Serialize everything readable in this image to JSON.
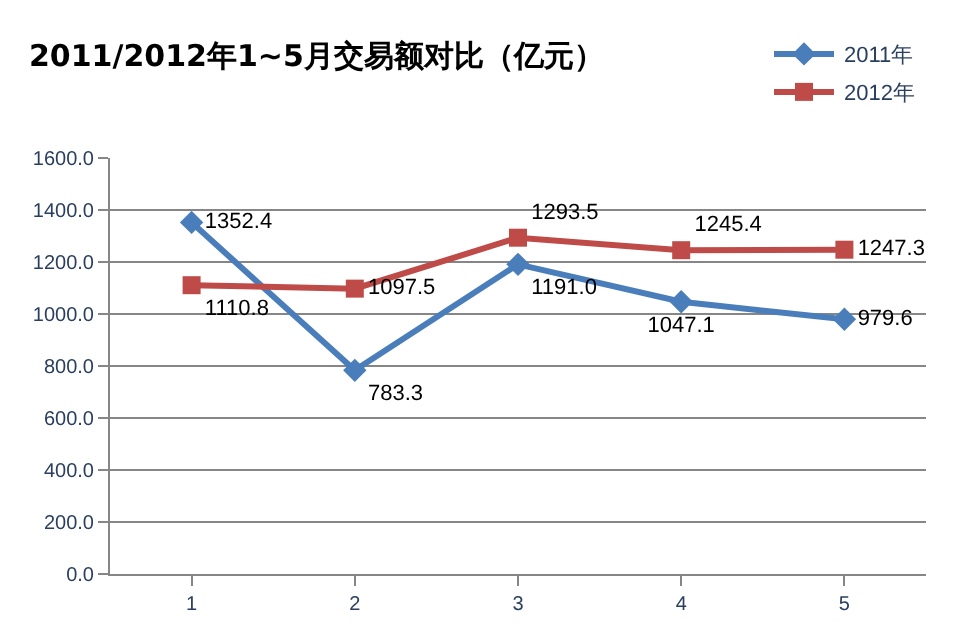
{
  "chart_data": {
    "type": "line",
    "title": "2011/2012年1~5月交易额对比（亿元）",
    "categories": [
      "1",
      "2",
      "3",
      "4",
      "5"
    ],
    "series": [
      {
        "name": "2011年",
        "color": "#4a7ebb",
        "marker": "diamond",
        "values": [
          1352.4,
          783.3,
          1191.0,
          1047.1,
          979.6
        ],
        "value_labels": [
          "1352.4",
          "783.3",
          "1191.0",
          "1047.1",
          "979.6"
        ]
      },
      {
        "name": "2012年",
        "color": "#be4b48",
        "marker": "square",
        "values": [
          1110.8,
          1097.5,
          1293.5,
          1245.4,
          1247.3
        ],
        "value_labels": [
          "1110.8",
          "1097.5",
          "1293.5",
          "1245.4",
          "1247.3"
        ]
      }
    ],
    "ylim": [
      0,
      1600
    ],
    "yticks": [
      {
        "value": 0,
        "label": "0.0"
      },
      {
        "value": 200,
        "label": "200.0"
      },
      {
        "value": 400,
        "label": "400.0"
      },
      {
        "value": 600,
        "label": "600.0"
      },
      {
        "value": 800,
        "label": "800.0"
      },
      {
        "value": 1000,
        "label": "1000.0"
      },
      {
        "value": 1200,
        "label": "1200.0"
      },
      {
        "value": 1400,
        "label": "1400.0"
      },
      {
        "value": 1600,
        "label": "1600.0"
      }
    ],
    "grid": "y",
    "legend": "top right"
  }
}
